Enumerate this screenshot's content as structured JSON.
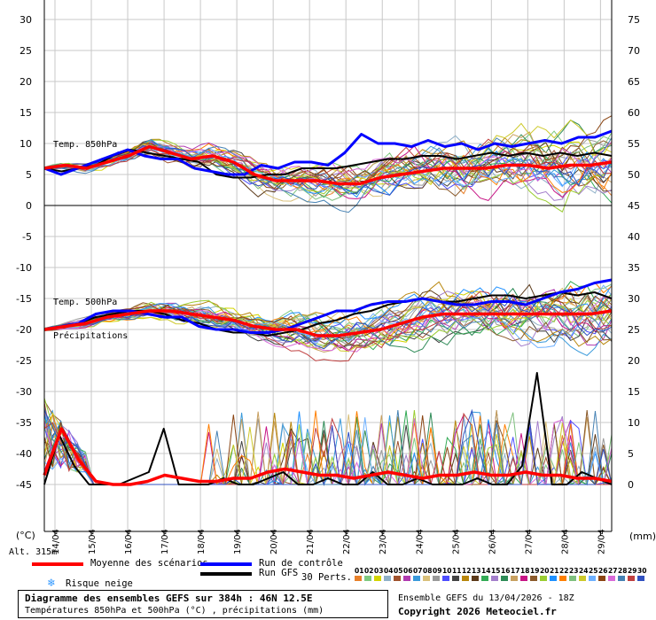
{
  "chart_data": {
    "type": "line",
    "title": "Diagramme des ensembles GEFS sur 384h : 46N 12.5E",
    "subtitle": "Températures 850hPa et 500hPa (°C) , précipitations (mm)",
    "left_unit": "(°C)",
    "right_unit": "(mm)",
    "altitude": "Alt. 315m",
    "left_axis": {
      "ticks": [
        30,
        25,
        20,
        15,
        10,
        5,
        0,
        -5,
        -10,
        -15,
        -20,
        -25,
        -30,
        -35,
        -40,
        -45
      ],
      "range": [
        -45,
        30
      ]
    },
    "right_axis_upper": {
      "ticks": [
        75,
        70,
        65,
        60,
        55,
        50,
        45
      ],
      "range": [
        45,
        75
      ]
    },
    "right_axis_lower": {
      "ticks": [
        40,
        35,
        30,
        25,
        20,
        15,
        10,
        5,
        0
      ],
      "range": [
        0,
        40
      ]
    },
    "dates": [
      "14/04",
      "15/04",
      "16/04",
      "17/04",
      "18/04",
      "19/04",
      "20/04",
      "21/04",
      "22/04",
      "23/04",
      "24/04",
      "25/04",
      "26/04",
      "27/04",
      "28/04",
      "29/04"
    ],
    "panel_labels": {
      "t850": "Temp. 850hPa",
      "t500": "Temp. 500hPa",
      "precip": "Précipitations"
    },
    "series": [
      {
        "name": "Moyenne des scénarios",
        "t850": [
          6,
          6.5,
          6,
          7,
          8,
          9.5,
          8.5,
          7.5,
          8,
          7,
          5,
          4,
          4,
          4,
          3.5,
          3.5,
          4.5,
          5,
          5.5,
          6,
          6,
          6,
          6.5,
          6.5,
          6,
          6.5,
          6.5,
          7
        ],
        "t500": [
          -20,
          -19.5,
          -19,
          -18,
          -17.5,
          -17,
          -17,
          -17.5,
          -18,
          -18.5,
          -19.5,
          -20,
          -20,
          -21,
          -21,
          -20.5,
          -20,
          -19,
          -18,
          -17.5,
          -17.5,
          -17.5,
          -17.5,
          -17.5,
          -17.5,
          -17.5,
          -17.5,
          -17
        ],
        "precip": [
          1.5,
          9,
          4,
          0.5,
          0,
          0,
          0.5,
          1.5,
          1,
          0.5,
          0.5,
          1,
          1,
          2,
          2.5,
          2,
          1.5,
          1.5,
          1,
          1.5,
          2,
          1.5,
          1,
          1.5,
          1.5,
          2,
          1.5,
          1.5,
          2,
          1.5,
          1.5,
          1,
          1,
          0.5
        ]
      },
      {
        "name": "Run de contrôle",
        "t850": [
          6,
          5,
          6,
          7,
          8,
          9,
          8,
          7.5,
          7.5,
          6,
          5.5,
          5,
          5,
          6.5,
          6,
          7,
          7,
          6.5,
          8.5,
          11.5,
          10,
          10,
          9.5,
          10.5,
          9.5,
          10,
          9,
          10,
          9.5,
          10,
          10.5,
          10,
          11,
          11,
          12
        ],
        "t500": [
          -20,
          -19.5,
          -19,
          -17.5,
          -17,
          -17,
          -17.5,
          -18,
          -18,
          -19.5,
          -20,
          -20,
          -20.5,
          -20.5,
          -20,
          -19,
          -18,
          -17,
          -17,
          -16,
          -15.5,
          -15.5,
          -15,
          -15.5,
          -16,
          -16,
          -15.5,
          -15.5,
          -16,
          -15,
          -14,
          -13.5,
          -12.5,
          -12
        ]
      },
      {
        "name": "Run GFS",
        "t850": [
          6,
          5.5,
          6,
          6.5,
          8,
          9,
          8.5,
          8,
          7.5,
          7,
          5,
          4.5,
          4.5,
          5,
          5,
          6,
          6,
          6,
          6.5,
          7,
          7.5,
          7.5,
          8,
          8,
          7.5,
          8,
          8.5,
          8,
          8.5,
          8,
          8.5,
          8,
          8.5,
          8
        ],
        "t500": [
          -20,
          -19.5,
          -19,
          -18,
          -17.5,
          -17,
          -17,
          -17.5,
          -18.5,
          -19,
          -20,
          -20.5,
          -20.5,
          -21,
          -20.5,
          -20,
          -19,
          -18.5,
          -17.5,
          -17,
          -16,
          -15.5,
          -15,
          -15.5,
          -15.5,
          -15,
          -14.5,
          -14.5,
          -15,
          -14.5,
          -14,
          -14.5,
          -14,
          -15
        ],
        "precip": [
          0,
          8,
          3,
          0,
          0,
          0,
          1,
          2,
          9,
          0,
          0,
          0,
          1,
          0,
          0,
          1,
          2,
          0,
          0,
          1,
          0,
          0,
          2,
          0,
          0,
          1,
          0,
          0,
          0,
          1,
          0,
          0,
          3,
          18,
          0,
          0,
          2,
          1,
          0
        ]
      }
    ]
  },
  "legend": {
    "mean": "Moyenne des scénarios",
    "control": "Run de contrôle",
    "gfs": "Run GFS",
    "snow": "Risque neige",
    "perts": "30 Perts."
  },
  "pert_numbers": [
    "01",
    "02",
    "03",
    "04",
    "05",
    "06",
    "07",
    "08",
    "09",
    "10",
    "11",
    "12",
    "13",
    "14",
    "15",
    "16",
    "17",
    "18",
    "19",
    "20",
    "21",
    "22",
    "23",
    "24",
    "25",
    "26",
    "27",
    "28",
    "29",
    "30"
  ],
  "pert_colors": [
    "#e8802a",
    "#7fc97f",
    "#d4d400",
    "#8fb0c8",
    "#a0522d",
    "#b03ab0",
    "#3a9adb",
    "#d9c07a",
    "#999999",
    "#4d4dff",
    "#444444",
    "#b8860b",
    "#5c3a1a",
    "#33aa55",
    "#a37ecb",
    "#2e8b57",
    "#c8a060",
    "#c71585",
    "#8b5a2b",
    "#9acd32",
    "#1e90ff",
    "#ff7f00",
    "#7ec07e",
    "#cdc92a",
    "#6db0ff",
    "#8b4513",
    "#d96ad9",
    "#4682b4",
    "#c04040",
    "#3050c0"
  ],
  "colors": {
    "mean": "#ff0000",
    "control": "#0000ff",
    "gfs": "#000000",
    "snow": "#3399ff"
  },
  "footer": {
    "title": "Diagramme des ensembles GEFS sur 384h : 46N 12.5E",
    "subtitle": "Températures 850hPa et 500hPa (°C) , précipitations (mm)",
    "run": "Ensemble GEFS du 13/04/2026 - 18Z",
    "copyright": "Copyright 2026 Meteociel.fr"
  }
}
